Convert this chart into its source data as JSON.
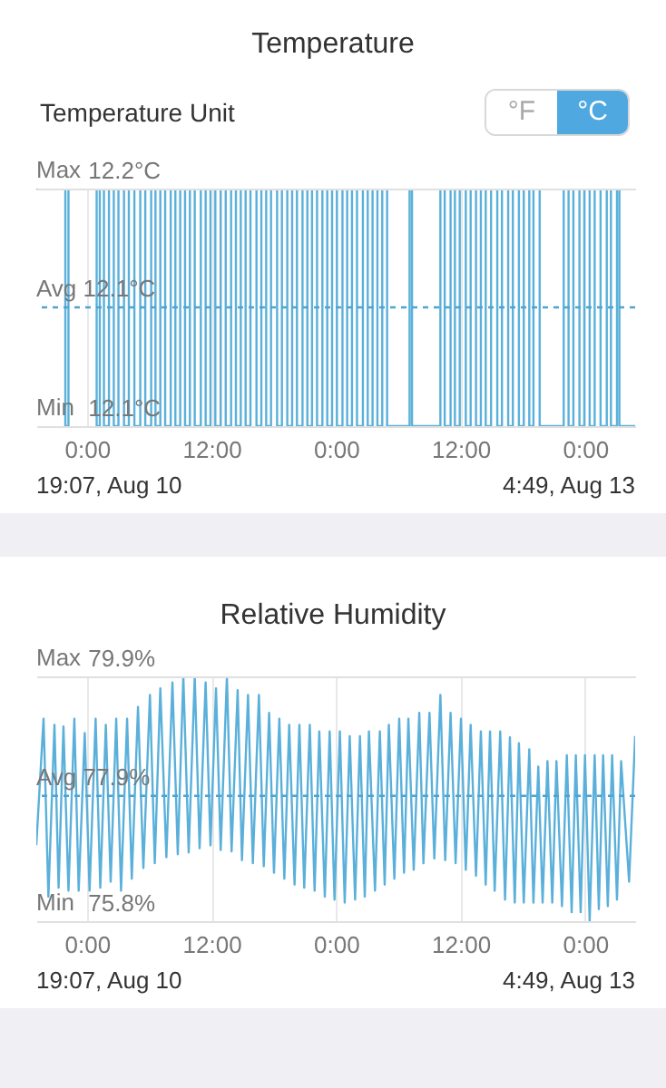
{
  "chart_data": [
    {
      "type": "step",
      "title": "Temperature",
      "annotations": [
        "Temperature Unit",
        "°F",
        "°C",
        "Max",
        "Min",
        "19:07,  Aug 10",
        "4:49,  Aug 13"
      ],
      "xlim": [
        "--08-10T19:07",
        "--08-13T04:49"
      ],
      "xticks": [
        {
          "value": "--08-11T00:00",
          "label": "0:00"
        },
        {
          "value": "--08-11T12:00",
          "label": "12:00"
        },
        {
          "value": "--08-12T00:00",
          "label": "0:00"
        },
        {
          "value": "--08-12T12:00",
          "label": "12:00"
        },
        {
          "value": "--08-13T00:00",
          "label": "0:00"
        }
      ],
      "ylim": [
        12.1,
        12.2
      ],
      "yticks": [
        {
          "value": 12.1,
          "label": "12.1°C"
        },
        {
          "value": 12.2,
          "label": "12.2°C"
        }
      ],
      "grid": true,
      "marker": "none",
      "line_style": "solid",
      "ref_lines": [
        {
          "axis": "y",
          "value": 12.15,
          "label": "Avg 12.1°C",
          "color": "#4fa3d1",
          "line_style": "dashed"
        }
      ],
      "series": [
        {
          "color": "#5ab0da",
          "x": [
            "--08-10T19:07",
            "--08-10T21:55",
            "--08-10T22:13",
            "--08-11T00:56",
            "--08-11T01:14",
            "--08-11T01:38",
            "--08-11T02:07",
            "--08-11T02:35",
            "--08-11T03:02",
            "--08-11T03:34",
            "--08-11T04:02",
            "--08-11T04:34",
            "--08-11T05:08",
            "--08-11T05:37",
            "--08-11T06:11",
            "--08-11T06:36",
            "--08-11T07:04",
            "--08-11T07:32",
            "--08-11T08:04",
            "--08-11T08:31",
            "--08-11T08:59",
            "--08-11T09:27",
            "--08-11T09:55",
            "--08-11T10:23",
            "--08-11T10:58",
            "--08-11T11:26",
            "--08-11T11:54",
            "--08-11T12:22",
            "--08-11T12:53",
            "--08-11T13:22",
            "--08-11T13:53",
            "--08-11T14:21",
            "--08-11T14:49",
            "--08-11T15:17",
            "--08-11T15:45",
            "--08-11T16:20",
            "--08-11T16:48",
            "--08-11T17:16",
            "--08-11T17:44",
            "--08-11T18:19",
            "--08-11T18:47",
            "--08-11T19:18",
            "--08-11T19:46",
            "--08-11T20:14",
            "--08-11T20:46",
            "--08-11T21:14",
            "--08-11T21:41",
            "--08-11T22:10",
            "--08-11T22:41",
            "--08-11T23:09",
            "--08-11T23:37",
            "--08-12T00:05",
            "--08-12T00:37",
            "--08-12T01:04",
            "--08-12T01:32",
            "--08-12T02:01",
            "--08-12T02:35",
            "--08-12T03:03",
            "--08-12T03:31",
            "--08-12T03:59",
            "--08-12T04:27",
            "--08-12T04:55",
            "--08-12T07:05",
            "--08-12T07:19",
            "--08-12T10:03",
            "--08-12T10:28",
            "--08-12T11:02",
            "--08-12T11:27",
            "--08-12T11:55",
            "--08-12T12:30",
            "--08-12T12:58",
            "--08-12T13:29",
            "--08-12T13:57",
            "--08-12T14:25",
            "--08-12T14:56",
            "--08-12T15:32",
            "--08-12T15:59",
            "--08-12T16:35",
            "--08-12T17:02",
            "--08-12T17:37",
            "--08-12T18:05",
            "--08-12T18:37",
            "--08-12T19:01",
            "--08-12T19:37",
            "--08-12T21:56",
            "--08-12T22:24",
            "--08-12T22:52",
            "--08-12T23:27",
            "--08-12T23:55",
            "--08-13T00:26",
            "--08-13T00:55",
            "--08-13T01:29",
            "--08-13T02:05",
            "--08-13T02:29",
            "--08-13T03:04",
            "--08-13T03:18",
            "--08-13T04:49"
          ],
          "values": [
            12.2,
            12.1,
            12.2,
            12.1,
            12.2,
            12.1,
            12.2,
            12.1,
            12.2,
            12.1,
            12.2,
            12.1,
            12.2,
            12.1,
            12.2,
            12.1,
            12.2,
            12.1,
            12.2,
            12.1,
            12.2,
            12.1,
            12.2,
            12.1,
            12.2,
            12.1,
            12.2,
            12.1,
            12.2,
            12.1,
            12.2,
            12.1,
            12.2,
            12.1,
            12.2,
            12.1,
            12.2,
            12.1,
            12.2,
            12.1,
            12.2,
            12.1,
            12.2,
            12.1,
            12.2,
            12.1,
            12.2,
            12.1,
            12.2,
            12.1,
            12.2,
            12.1,
            12.2,
            12.1,
            12.2,
            12.1,
            12.2,
            12.1,
            12.2,
            12.1,
            12.2,
            12.1,
            12.2,
            12.1,
            12.2,
            12.1,
            12.2,
            12.1,
            12.2,
            12.1,
            12.2,
            12.1,
            12.2,
            12.1,
            12.2,
            12.1,
            12.2,
            12.1,
            12.2,
            12.1,
            12.2,
            12.1,
            12.2,
            12.1,
            12.2,
            12.1,
            12.2,
            12.1,
            12.2,
            12.1,
            12.2,
            12.1,
            12.2,
            12.1,
            12.2,
            12.1,
            12.1
          ]
        }
      ]
    },
    {
      "type": "line",
      "title": "Relative Humidity",
      "annotations": [
        "Max",
        "Min",
        "19:07,  Aug 10",
        "4:49,  Aug 13"
      ],
      "xlim": [
        "--08-10T19:07",
        "--08-13T04:49"
      ],
      "xticks": [
        {
          "value": "--08-11T00:00",
          "label": "0:00"
        },
        {
          "value": "--08-11T12:00",
          "label": "12:00"
        },
        {
          "value": "--08-12T00:00",
          "label": "0:00"
        },
        {
          "value": "--08-12T12:00",
          "label": "12:00"
        },
        {
          "value": "--08-13T00:00",
          "label": "0:00"
        }
      ],
      "ylim": [
        75.8,
        79.9
      ],
      "yticks": [
        {
          "value": 75.8,
          "label": "75.8%"
        },
        {
          "value": 79.9,
          "label": "79.9%"
        }
      ],
      "grid": true,
      "marker": "none",
      "line_style": "solid",
      "ref_lines": [
        {
          "axis": "y",
          "value": 77.9,
          "label": "Avg 77.9%",
          "color": "#4fa3d1",
          "line_style": "dashed"
        }
      ],
      "series": [
        {
          "color": "#5ab0da",
          "x": [
            "--08-10T19:07",
            "--08-10T19:49",
            "--08-10T20:17",
            "--08-10T20:52",
            "--08-10T21:16",
            "--08-10T21:44",
            "--08-10T22:13",
            "--08-10T22:47",
            "--08-10T23:12",
            "--08-10T23:47",
            "--08-11T00:15",
            "--08-11T00:50",
            "--08-11T01:17",
            "--08-11T01:49",
            "--08-11T02:17",
            "--08-11T02:49",
            "--08-11T03:17",
            "--08-11T03:52",
            "--08-11T04:19",
            "--08-11T04:55",
            "--08-11T05:26",
            "--08-11T06:04",
            "--08-11T06:32",
            "--08-11T07:04",
            "--08-11T07:39",
            "--08-11T08:14",
            "--08-11T08:45",
            "--08-11T09:17",
            "--08-11T09:48",
            "--08-11T10:23",
            "--08-11T10:51",
            "--08-11T11:26",
            "--08-11T11:54",
            "--08-11T12:26",
            "--08-11T12:53",
            "--08-11T13:29",
            "--08-11T13:56",
            "--08-11T14:31",
            "--08-11T14:56",
            "--08-11T15:31",
            "--08-11T15:59",
            "--08-11T16:34",
            "--08-11T17:02",
            "--08-11T17:33",
            "--08-11T18:01",
            "--08-11T18:32",
            "--08-11T19:01",
            "--08-11T19:29",
            "--08-11T20:00",
            "--08-11T20:28",
            "--08-11T20:56",
            "--08-11T21:28",
            "--08-11T21:56",
            "--08-11T22:23",
            "--08-11T22:55",
            "--08-11T23:23",
            "--08-11T23:51",
            "--08-12T00:22",
            "--08-12T00:50",
            "--08-12T01:19",
            "--08-12T01:50",
            "--08-12T02:18",
            "--08-12T02:46",
            "--08-12T03:10",
            "--08-12T03:45",
            "--08-12T04:13",
            "--08-12T04:41",
            "--08-12T05:05",
            "--08-12T05:37",
            "--08-12T06:05",
            "--08-12T06:33",
            "--08-12T06:58",
            "--08-12T07:29",
            "--08-12T08:01",
            "--08-12T08:25",
            "--08-12T09:00",
            "--08-12T09:28",
            "--08-12T10:03",
            "--08-12T10:31",
            "--08-12T11:02",
            "--08-12T11:31",
            "--08-12T12:02",
            "--08-12T12:30",
            "--08-12T12:58",
            "--08-12T13:29",
            "--08-12T13:57",
            "--08-12T14:25",
            "--08-12T14:50",
            "--08-12T15:17",
            "--08-12T15:49",
            "--08-12T16:17",
            "--08-12T16:45",
            "--08-12T17:13",
            "--08-12T17:37",
            "--08-12T18:05",
            "--08-12T18:37",
            "--08-12T19:01",
            "--08-12T19:29",
            "--08-12T19:54",
            "--08-12T20:22",
            "--08-12T20:50",
            "--08-12T21:14",
            "--08-12T21:46",
            "--08-12T22:14",
            "--08-12T22:42",
            "--08-12T23:06",
            "--08-12T23:34",
            "--08-12T23:59",
            "--08-13T00:26",
            "--08-13T00:55",
            "--08-13T01:19",
            "--08-13T01:44",
            "--08-13T02:11",
            "--08-13T02:36",
            "--08-13T03:04",
            "--08-13T03:28",
            "--08-13T04:14",
            "--08-13T04:49"
          ],
          "values": [
            77.07,
            79.19,
            76.21,
            79.09,
            76.36,
            79.06,
            76.31,
            79.19,
            76.31,
            78.95,
            76.31,
            79.19,
            76.36,
            79.09,
            76.46,
            79.19,
            76.31,
            79.19,
            76.51,
            79.39,
            76.69,
            79.59,
            76.77,
            79.7,
            76.87,
            79.8,
            76.92,
            79.9,
            76.95,
            79.9,
            77.02,
            79.8,
            77.07,
            79.7,
            76.99,
            79.9,
            76.97,
            79.67,
            76.82,
            79.59,
            76.77,
            79.59,
            76.72,
            79.29,
            76.61,
            79.19,
            76.51,
            79.09,
            76.41,
            79.09,
            76.36,
            79.09,
            76.31,
            78.98,
            76.21,
            78.98,
            76.16,
            78.98,
            76.11,
            78.9,
            76.16,
            78.9,
            76.21,
            78.98,
            76.31,
            78.98,
            76.41,
            79.09,
            76.51,
            79.19,
            76.61,
            79.19,
            76.66,
            79.29,
            76.77,
            79.29,
            76.85,
            79.59,
            76.82,
            79.29,
            76.77,
            79.19,
            76.66,
            79.09,
            76.56,
            78.98,
            76.41,
            78.98,
            76.31,
            78.98,
            76.16,
            78.88,
            76.11,
            78.78,
            76.11,
            78.68,
            76.11,
            78.39,
            76.11,
            78.48,
            76.11,
            78.48,
            76.05,
            78.58,
            75.95,
            78.58,
            75.95,
            78.58,
            75.8,
            78.58,
            76.0,
            78.58,
            76.05,
            78.58,
            76.16,
            78.48,
            76.46,
            78.9
          ]
        }
      ]
    }
  ]
}
